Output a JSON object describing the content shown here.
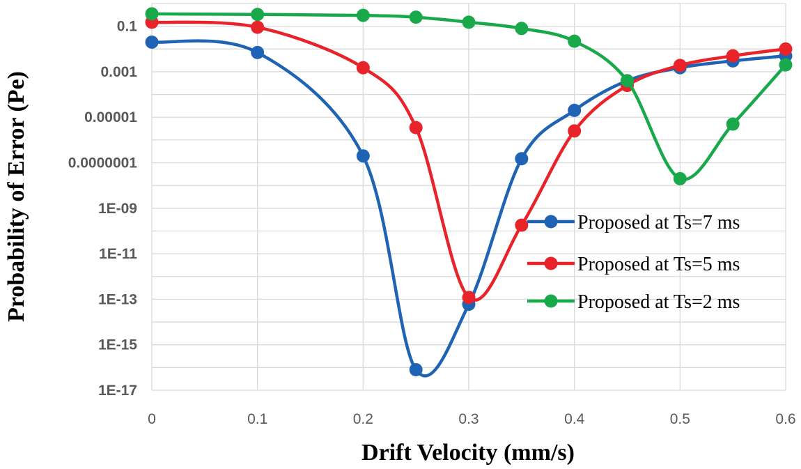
{
  "chart_data": {
    "type": "line",
    "title": "",
    "xlabel": "Drift Velocity (mm/s)",
    "ylabel": "Probability of Error (Pe)",
    "y_scale": "log",
    "xlim": [
      0,
      0.6
    ],
    "ylim": [
      1e-17,
      1
    ],
    "x_ticks": [
      0,
      0.1,
      0.2,
      0.3,
      0.4,
      0.5,
      0.6
    ],
    "x_tick_labels": [
      "0",
      "0.1",
      "0.2",
      "0.3",
      "0.4",
      "0.5",
      "0.6"
    ],
    "y_ticks": [
      0.1,
      0.001,
      1e-05,
      1e-07,
      1e-09,
      1e-11,
      1e-13,
      1e-15,
      1e-17
    ],
    "y_tick_labels": [
      "0.1",
      "0.001",
      "0.00001",
      "0.0000001",
      "1E-09",
      "1E-11",
      "1E-13",
      "1E-15",
      "1E-17"
    ],
    "grid": true,
    "legend_position": "right-center",
    "x": [
      0,
      0.1,
      0.2,
      0.25,
      0.3,
      0.35,
      0.4,
      0.45,
      0.5,
      0.55,
      0.6
    ],
    "series": [
      {
        "name": "Proposed at Ts=7 ms",
        "color": "#1f63b5",
        "values": [
          0.02,
          0.007,
          2e-07,
          8e-17,
          6e-14,
          1.5e-07,
          2e-05,
          0.0004,
          0.0015,
          0.003,
          0.005
        ]
      },
      {
        "name": "Proposed at Ts=5 ms",
        "color": "#e8242a",
        "values": [
          0.15,
          0.09,
          0.0015,
          3.5e-06,
          1.2e-13,
          1.8e-10,
          2.5e-06,
          0.00025,
          0.0019,
          0.005,
          0.01
        ]
      },
      {
        "name": "Proposed at Ts=2 ms",
        "color": "#19a84a",
        "values": [
          0.35,
          0.33,
          0.3,
          0.25,
          0.15,
          0.08,
          0.022,
          0.0004,
          2e-08,
          5e-06,
          0.002
        ]
      }
    ]
  }
}
